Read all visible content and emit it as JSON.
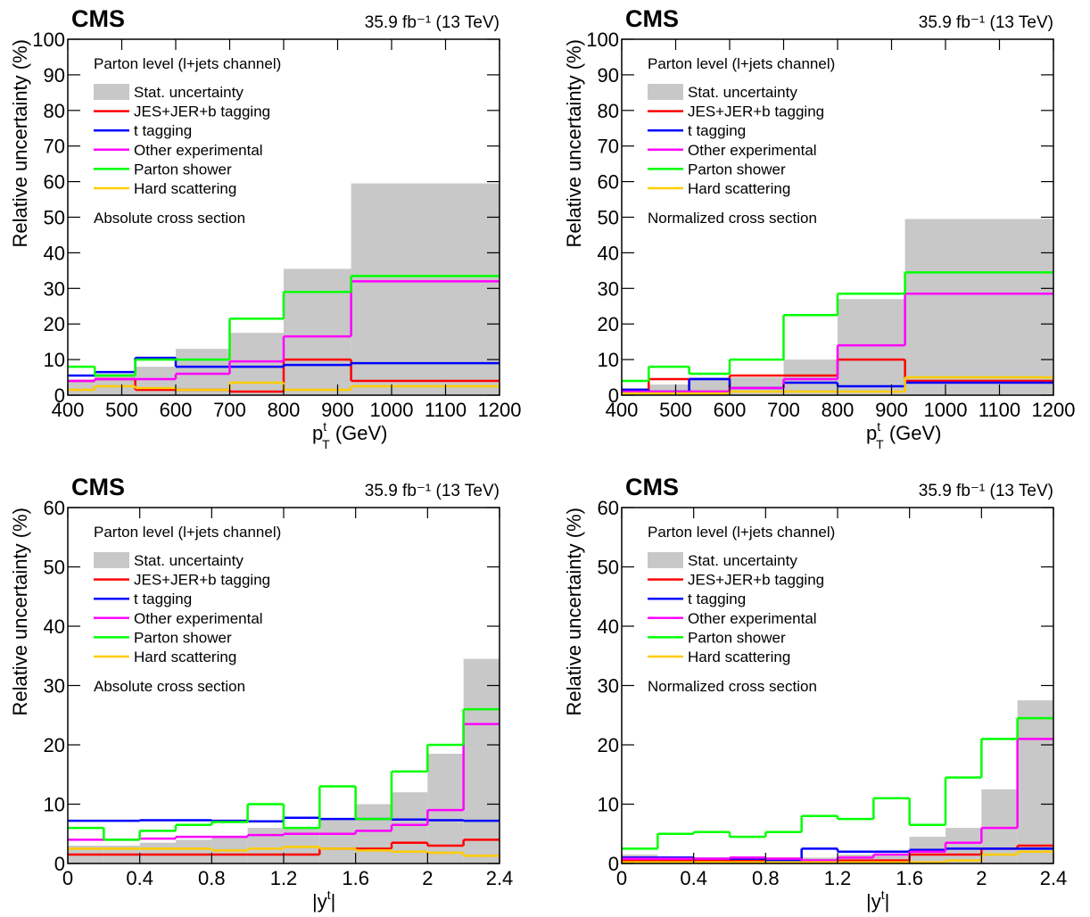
{
  "chart_data": [
    {
      "type": "histogram",
      "experiment": "CMS",
      "lumi": "35.9 fb⁻¹ (13 TeV)",
      "xlabel_parts": [
        {
          "text": "p",
          "style": "base"
        },
        {
          "text": "t",
          "style": "sup"
        },
        {
          "text": "T",
          "style": "sub"
        },
        {
          "text": " (GeV)",
          "style": "base"
        }
      ],
      "ylabel": "Relative uncertainty (%)",
      "annotations": [
        "Parton level (l+jets channel)",
        "Absolute cross section"
      ],
      "bins": [
        400,
        450,
        525,
        600,
        700,
        800,
        925,
        1200
      ],
      "xlim": [
        400,
        1200
      ],
      "xticks": [
        400,
        500,
        600,
        700,
        800,
        900,
        1000,
        1100,
        1200
      ],
      "ylim": [
        0,
        100
      ],
      "yticks": [
        0,
        10,
        20,
        30,
        40,
        50,
        60,
        70,
        80,
        90,
        100
      ],
      "series": [
        {
          "name": "Stat. uncertainty",
          "color": "#c8c8c8",
          "style": "fill",
          "values": [
            4,
            6,
            8,
            13,
            17.5,
            35.5,
            59.5
          ]
        },
        {
          "name": "JES+JER+b tagging",
          "color": "#ff0000",
          "style": "line",
          "values": [
            4,
            4.5,
            1.5,
            1.5,
            1,
            10,
            4
          ]
        },
        {
          "name": "t tagging",
          "color": "#0000ff",
          "style": "line",
          "values": [
            5.5,
            6.5,
            10.5,
            8,
            8,
            8.5,
            9
          ]
        },
        {
          "name": "Other experimental",
          "color": "#ff00ff",
          "style": "line",
          "values": [
            4,
            4.5,
            4.5,
            6,
            9.5,
            16.5,
            32
          ]
        },
        {
          "name": "Parton shower",
          "color": "#00ff00",
          "style": "line",
          "values": [
            8,
            5.5,
            10,
            10,
            21.5,
            29,
            33.5
          ]
        },
        {
          "name": "Hard scattering",
          "color": "#ffcc00",
          "style": "line",
          "values": [
            1.5,
            2.5,
            2,
            1.5,
            3.5,
            1.5,
            2.5
          ]
        }
      ]
    },
    {
      "type": "histogram",
      "experiment": "CMS",
      "lumi": "35.9 fb⁻¹ (13 TeV)",
      "xlabel_parts": [
        {
          "text": "p",
          "style": "base"
        },
        {
          "text": "t",
          "style": "sup"
        },
        {
          "text": "T",
          "style": "sub"
        },
        {
          "text": " (GeV)",
          "style": "base"
        }
      ],
      "ylabel": "Relative uncertainty (%)",
      "annotations": [
        "Parton level (l+jets channel)",
        "Normalized cross section"
      ],
      "bins": [
        400,
        450,
        525,
        600,
        700,
        800,
        925,
        1200
      ],
      "xlim": [
        400,
        1200
      ],
      "xticks": [
        400,
        500,
        600,
        700,
        800,
        900,
        1000,
        1100,
        1200
      ],
      "ylim": [
        0,
        100
      ],
      "yticks": [
        0,
        10,
        20,
        30,
        40,
        50,
        60,
        70,
        80,
        90,
        100
      ],
      "series": [
        {
          "name": "Stat. uncertainty",
          "color": "#c8c8c8",
          "style": "fill",
          "values": [
            2,
            3,
            5,
            5,
            10,
            27,
            49.5
          ]
        },
        {
          "name": "JES+JER+b tagging",
          "color": "#ff0000",
          "style": "line",
          "values": [
            1,
            4.5,
            1,
            5.5,
            5.5,
            10,
            4
          ]
        },
        {
          "name": "t tagging",
          "color": "#0000ff",
          "style": "line",
          "values": [
            1.5,
            1,
            4.5,
            2,
            3.5,
            2.5,
            3.5
          ]
        },
        {
          "name": "Other experimental",
          "color": "#ff00ff",
          "style": "line",
          "values": [
            1,
            1,
            1,
            2,
            4.5,
            14,
            28.5
          ]
        },
        {
          "name": "Parton shower",
          "color": "#00ff00",
          "style": "line",
          "values": [
            4,
            8,
            6,
            10,
            22.5,
            28.5,
            34.5
          ]
        },
        {
          "name": "Hard scattering",
          "color": "#ffcc00",
          "style": "line",
          "values": [
            0.5,
            0.5,
            0.5,
            1,
            1,
            1,
            5
          ]
        }
      ]
    },
    {
      "type": "histogram",
      "experiment": "CMS",
      "lumi": "35.9 fb⁻¹ (13 TeV)",
      "xlabel_parts": [
        {
          "text": "|y",
          "style": "base"
        },
        {
          "text": "t",
          "style": "sup"
        },
        {
          "text": "|",
          "style": "base"
        }
      ],
      "ylabel": "Relative uncertainty (%)",
      "annotations": [
        "Parton level (l+jets channel)",
        "Absolute cross section"
      ],
      "bins": [
        0,
        0.2,
        0.4,
        0.6,
        0.8,
        1.0,
        1.2,
        1.4,
        1.6,
        1.8,
        2.0,
        2.2,
        2.4
      ],
      "xlim": [
        0,
        2.4
      ],
      "xticks": [
        0,
        0.4,
        0.8,
        1.2,
        1.6,
        2,
        2.4
      ],
      "ylim": [
        0,
        60
      ],
      "yticks": [
        0,
        10,
        20,
        30,
        40,
        50,
        60
      ],
      "series": [
        {
          "name": "Stat. uncertainty",
          "color": "#c8c8c8",
          "style": "fill",
          "values": [
            3,
            3,
            3.5,
            4,
            4.5,
            6,
            6,
            7.5,
            10,
            12,
            18.5,
            34.5
          ]
        },
        {
          "name": "JES+JER+b tagging",
          "color": "#ff0000",
          "style": "line",
          "values": [
            1.5,
            1.5,
            1.5,
            1.5,
            1.5,
            1.5,
            1.5,
            2.5,
            2.5,
            3.5,
            3,
            4
          ]
        },
        {
          "name": "t tagging",
          "color": "#0000ff",
          "style": "line",
          "values": [
            7.2,
            7.2,
            7.3,
            7.3,
            7.2,
            7.1,
            7.7,
            7.5,
            7.5,
            7.4,
            7.3,
            7.2
          ]
        },
        {
          "name": "Other experimental",
          "color": "#ff00ff",
          "style": "line",
          "values": [
            4,
            4,
            4.2,
            4.5,
            4.5,
            4.8,
            5,
            5,
            5.5,
            6.5,
            9,
            23.5
          ]
        },
        {
          "name": "Parton shower",
          "color": "#00ff00",
          "style": "line",
          "values": [
            6,
            4,
            5.5,
            6.5,
            7,
            10,
            6,
            13,
            7.5,
            15.5,
            20,
            26
          ]
        },
        {
          "name": "Hard scattering",
          "color": "#ffcc00",
          "style": "line",
          "values": [
            2.5,
            2.5,
            2.5,
            2.5,
            2.2,
            2.5,
            2.8,
            2.5,
            2.2,
            2,
            1.8,
            1.3
          ]
        }
      ]
    },
    {
      "type": "histogram",
      "experiment": "CMS",
      "lumi": "35.9 fb⁻¹ (13 TeV)",
      "xlabel_parts": [
        {
          "text": "|y",
          "style": "base"
        },
        {
          "text": "t",
          "style": "sup"
        },
        {
          "text": "|",
          "style": "base"
        }
      ],
      "ylabel": "Relative uncertainty (%)",
      "annotations": [
        "Parton level (l+jets channel)",
        "Normalized cross section"
      ],
      "bins": [
        0,
        0.2,
        0.4,
        0.6,
        0.8,
        1.0,
        1.2,
        1.4,
        1.6,
        1.8,
        2.0,
        2.2,
        2.4
      ],
      "xlim": [
        0,
        2.4
      ],
      "xticks": [
        0,
        0.4,
        0.8,
        1.2,
        1.6,
        2,
        2.4
      ],
      "ylim": [
        0,
        60
      ],
      "yticks": [
        0,
        10,
        20,
        30,
        40,
        50,
        60
      ],
      "series": [
        {
          "name": "Stat. uncertainty",
          "color": "#c8c8c8",
          "style": "fill",
          "values": [
            1.5,
            1,
            1,
            1,
            1,
            1,
            1.5,
            1.5,
            4.5,
            6,
            12.5,
            27.5
          ]
        },
        {
          "name": "JES+JER+b tagging",
          "color": "#ff0000",
          "style": "line",
          "values": [
            0.5,
            0.5,
            0.5,
            0.5,
            0.8,
            0.5,
            0.5,
            0.5,
            1.5,
            1.5,
            2.5,
            3
          ]
        },
        {
          "name": "t tagging",
          "color": "#0000ff",
          "style": "line",
          "values": [
            1,
            1,
            0.8,
            0.8,
            0.5,
            2.5,
            2,
            2,
            2.3,
            2.5,
            2.5,
            2.5
          ]
        },
        {
          "name": "Other experimental",
          "color": "#ff00ff",
          "style": "line",
          "values": [
            0.8,
            0.8,
            0.8,
            1,
            0.8,
            0.5,
            1,
            1.5,
            2,
            3.5,
            6,
            21
          ]
        },
        {
          "name": "Parton shower",
          "color": "#00ff00",
          "style": "line",
          "values": [
            2.5,
            5,
            5.3,
            4.5,
            5.3,
            8,
            7.5,
            11,
            6.5,
            14.5,
            21,
            24.5
          ]
        },
        {
          "name": "Hard scattering",
          "color": "#ffcc00",
          "style": "line",
          "values": [
            0.2,
            0.2,
            0.2,
            0.2,
            0.2,
            0.2,
            0.2,
            0.2,
            0.2,
            0.5,
            1.5,
            2
          ]
        }
      ]
    }
  ]
}
